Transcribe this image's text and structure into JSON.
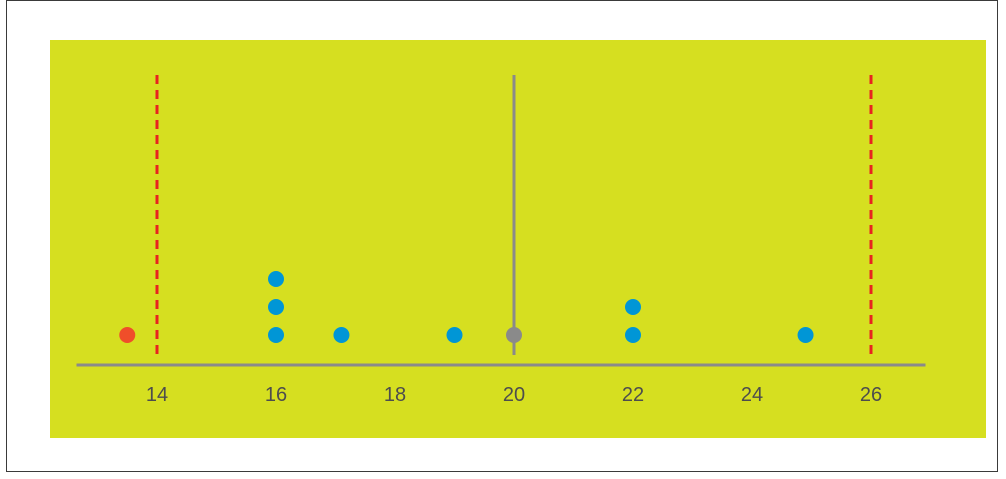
{
  "chart_data": {
    "type": "scatter",
    "subtype": "dot-plot",
    "xlim": [
      13,
      27
    ],
    "ticks": [
      14,
      16,
      18,
      20,
      22,
      24,
      26
    ],
    "tick_labels": [
      "14",
      "16",
      "18",
      "20",
      "22",
      "24",
      "26"
    ],
    "points": [
      {
        "x": 13.5,
        "stack": 1,
        "kind": "outlier"
      },
      {
        "x": 16,
        "stack": 1,
        "kind": "data"
      },
      {
        "x": 16,
        "stack": 2,
        "kind": "data"
      },
      {
        "x": 16,
        "stack": 3,
        "kind": "data"
      },
      {
        "x": 17.1,
        "stack": 1,
        "kind": "data"
      },
      {
        "x": 19,
        "stack": 1,
        "kind": "data"
      },
      {
        "x": 20,
        "stack": 1,
        "kind": "mean"
      },
      {
        "x": 22,
        "stack": 1,
        "kind": "data"
      },
      {
        "x": 22,
        "stack": 2,
        "kind": "data"
      },
      {
        "x": 24.9,
        "stack": 1,
        "kind": "data"
      }
    ],
    "center_line": {
      "x": 20
    },
    "bound_lines": [
      {
        "x": 14
      },
      {
        "x": 26
      }
    ],
    "grid": false,
    "colors": {
      "background": "#d6df20",
      "axis": "#8a8a8a",
      "data_point": "#0096d6",
      "outlier_point": "#f04e2a",
      "mean_point": "#8a8a8a",
      "bound_line": "#e8231f",
      "tick_text": "#4d4d4d"
    }
  }
}
